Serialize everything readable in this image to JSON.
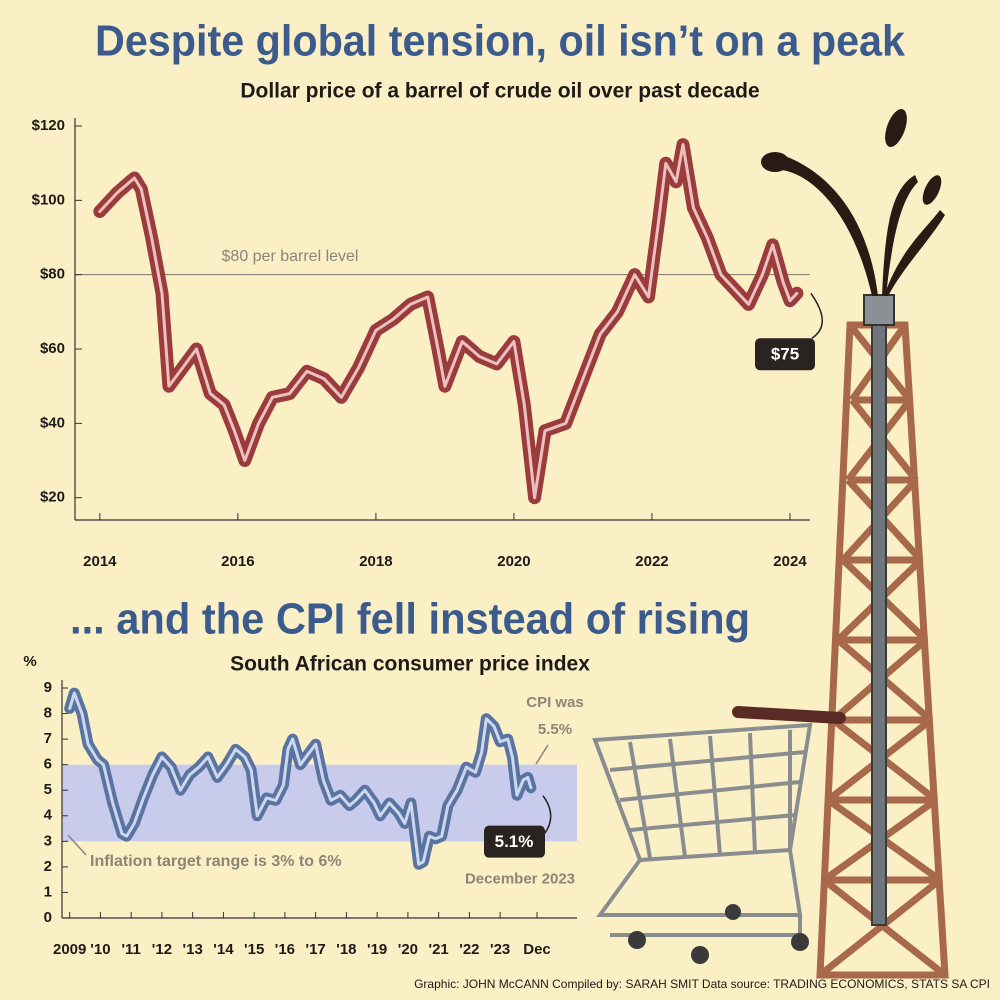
{
  "chart_data": [
    {
      "type": "line",
      "title": "Despite global tension, oil isn’t on a peak",
      "subtitle": "Dollar price of a barrel of crude oil over past decade",
      "x": [
        2014.0,
        2014.25,
        2014.5,
        2014.6,
        2014.75,
        2014.9,
        2015.0,
        2015.2,
        2015.4,
        2015.6,
        2015.8,
        2015.95,
        2016.1,
        2016.3,
        2016.5,
        2016.75,
        2017.0,
        2017.25,
        2017.5,
        2017.75,
        2018.0,
        2018.25,
        2018.5,
        2018.75,
        2018.9,
        2019.0,
        2019.25,
        2019.5,
        2019.75,
        2020.0,
        2020.15,
        2020.3,
        2020.45,
        2020.75,
        2021.0,
        2021.25,
        2021.5,
        2021.75,
        2021.95,
        2022.1,
        2022.2,
        2022.35,
        2022.45,
        2022.6,
        2022.8,
        2023.0,
        2023.2,
        2023.4,
        2023.6,
        2023.75,
        2023.9,
        2024.0,
        2024.1
      ],
      "values": [
        97,
        102,
        106,
        103,
        90,
        75,
        50,
        55,
        60,
        48,
        45,
        38,
        30,
        40,
        47,
        48,
        54,
        52,
        47,
        55,
        65,
        68,
        72,
        74,
        60,
        50,
        62,
        58,
        56,
        62,
        45,
        20,
        38,
        40,
        52,
        64,
        70,
        80,
        74,
        95,
        110,
        105,
        115,
        98,
        90,
        80,
        76,
        72,
        80,
        88,
        78,
        73,
        75
      ],
      "colors": [
        "#9a3b3c",
        "#ecc0bf"
      ],
      "xlim": [
        2013.64,
        2024.29
      ],
      "xticks": [
        2014,
        2016,
        2018,
        2020,
        2022,
        2024
      ],
      "ylim": [
        14,
        120
      ],
      "yticks": [
        {
          "value": 20,
          "label": "$20"
        },
        {
          "value": 40,
          "label": "$40"
        },
        {
          "value": 60,
          "label": "$60"
        },
        {
          "value": 80,
          "label": "$80"
        },
        {
          "value": 100,
          "label": "$100"
        },
        {
          "value": 120,
          "label": "$120"
        }
      ],
      "reference": {
        "value": 80,
        "label": "$80 per barrel level"
      },
      "callout": {
        "value": 75,
        "label": "$75"
      }
    },
    {
      "type": "line",
      "title": "... and the CPI fell instead of rising",
      "subtitle": "South African consumer price index",
      "y_unit": "%",
      "x": [
        2009.0,
        2009.15,
        2009.4,
        2009.6,
        2009.9,
        2010.1,
        2010.4,
        2010.7,
        2010.85,
        2011.1,
        2011.4,
        2011.7,
        2012.0,
        2012.3,
        2012.6,
        2012.9,
        2013.2,
        2013.5,
        2013.8,
        2014.1,
        2014.4,
        2014.7,
        2014.9,
        2015.1,
        2015.4,
        2015.7,
        2015.95,
        2016.1,
        2016.25,
        2016.5,
        2016.75,
        2017.0,
        2017.25,
        2017.5,
        2017.8,
        2018.1,
        2018.3,
        2018.6,
        2018.9,
        2019.1,
        2019.4,
        2019.7,
        2019.9,
        2020.1,
        2020.35,
        2020.5,
        2020.7,
        2020.9,
        2021.1,
        2021.3,
        2021.6,
        2021.9,
        2022.2,
        2022.4,
        2022.55,
        2022.8,
        2023.0,
        2023.25,
        2023.4,
        2023.55,
        2023.75,
        2023.9,
        2024.0
      ],
      "values": [
        8.2,
        8.8,
        8.0,
        6.8,
        6.2,
        6.0,
        4.5,
        3.3,
        3.2,
        3.7,
        4.7,
        5.6,
        6.3,
        5.9,
        5.0,
        5.6,
        5.9,
        6.3,
        5.5,
        6.0,
        6.6,
        6.3,
        5.8,
        4.0,
        4.7,
        4.6,
        5.2,
        6.6,
        7.0,
        6.0,
        6.4,
        6.8,
        5.4,
        4.6,
        4.8,
        4.4,
        4.6,
        5.0,
        4.5,
        4.0,
        4.5,
        4.1,
        3.7,
        4.5,
        2.1,
        2.2,
        3.2,
        3.1,
        3.2,
        4.4,
        5.0,
        5.9,
        5.7,
        6.5,
        7.8,
        7.5,
        6.9,
        7.0,
        6.3,
        4.8,
        5.4,
        5.5,
        5.1
      ],
      "colors": [
        "#5a74a2",
        "#cdd7ee"
      ],
      "xlim": [
        2008.75,
        2025.5
      ],
      "xticks": [
        2009,
        {
          "value": 2010,
          "label": "'10"
        },
        {
          "value": 2011,
          "label": "'11"
        },
        {
          "value": 2012,
          "label": "'12"
        },
        {
          "value": 2013,
          "label": "'13"
        },
        {
          "value": 2014,
          "label": "'14"
        },
        {
          "value": 2015,
          "label": "'15"
        },
        {
          "value": 2016,
          "label": "'16"
        },
        {
          "value": 2017,
          "label": "'17"
        },
        {
          "value": 2018,
          "label": "'18"
        },
        {
          "value": 2019,
          "label": "'19"
        },
        {
          "value": 2020,
          "label": "'20"
        },
        {
          "value": 2021,
          "label": "'21"
        },
        {
          "value": 2022,
          "label": "'22"
        },
        {
          "value": 2023,
          "label": "'23"
        },
        {
          "value": 2024.2,
          "label": "Dec"
        }
      ],
      "ylim": [
        0,
        9
      ],
      "yticks": [
        0,
        1,
        2,
        3,
        4,
        5,
        6,
        7,
        8,
        9
      ],
      "band": {
        "from": 3,
        "to": 6,
        "color": "#c8cbeb",
        "label": "Inflation target range is 3% to 6%"
      },
      "note": [
        "CPI was",
        "5.5%"
      ],
      "callout": {
        "value": 5.1,
        "label": "5.1%",
        "date": "December 2023"
      }
    }
  ],
  "credits": "Graphic: JOHN McCANN  Compiled by: SARAH SMIT  Data source: TRADING ECONOMICS, STATS SA CPI"
}
